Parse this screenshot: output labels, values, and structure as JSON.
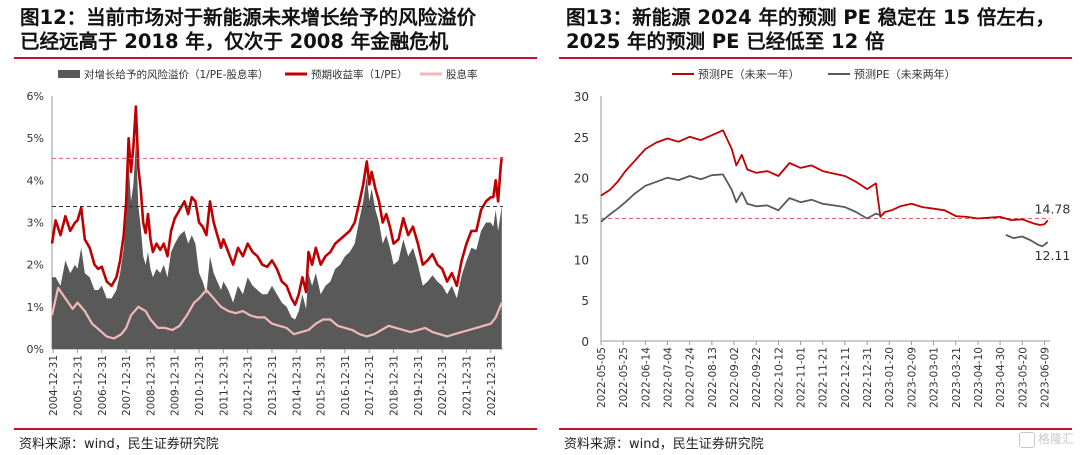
{
  "left_panel": {
    "title_line1": "图12：当前市场对于新能源未来增长给予的风险溢价",
    "title_line2": "已经远高于 2018 年，仅次于 2008 年金融危机",
    "source": "资料来源：wind，民生证券研究院"
  },
  "right_panel": {
    "title_line1": "图13：新能源 2024 年的预测 PE 稳定在 15 倍左右，",
    "title_line2": "2025 年的预测 PE 已经低至 12 倍",
    "source": "资料来源：wind，民生证券研究院"
  },
  "watermark": {
    "text": "格隆汇",
    "icon": "gelonghui-logo-icon"
  },
  "colors": {
    "rule": "#c8102e",
    "red_series": "#c00000",
    "gray_area": "#595959",
    "pink_series": "#f2b8b8",
    "dark_line": "#595959",
    "ref_red": "#e06060",
    "ref_black": "#333333"
  },
  "chart_data": [
    {
      "type": "area",
      "legend": [
        {
          "name": "对增长给予的风险溢价（1/PE-股息率）",
          "kind": "area",
          "color": "#595959"
        },
        {
          "name": "预期收益率（1/PE）",
          "kind": "line",
          "color": "#c00000"
        },
        {
          "name": "股息率",
          "kind": "line",
          "color": "#f2b8b8"
        }
      ],
      "y_ticks": [
        "0%",
        "1%",
        "2%",
        "3%",
        "4%",
        "5%",
        "6%"
      ],
      "ylim": [
        0,
        6
      ],
      "x_ticks": [
        "2004-12-31",
        "2005-12-31",
        "2006-12-31",
        "2007-12-31",
        "2008-12-31",
        "2009-12-31",
        "2010-12-31",
        "2011-12-31",
        "2012-12-31",
        "2013-12-31",
        "2014-12-31",
        "2015-12-31",
        "2016-12-31",
        "2017-12-31",
        "2018-12-31",
        "2019-12-31",
        "2020-12-31",
        "2021-12-31",
        "2022-12-31"
      ],
      "x_range": [
        2004.95,
        2023.5
      ],
      "reference_lines": [
        {
          "value": 4.52,
          "style": "dashed",
          "color": "#e06060"
        },
        {
          "value": 3.38,
          "style": "dashed",
          "color": "#333333"
        }
      ],
      "series": [
        {
          "name": "预期收益率（1/PE）",
          "t": [
            2004.95,
            2005.1,
            2005.3,
            2005.5,
            2005.7,
            2005.9,
            2006.0,
            2006.15,
            2006.3,
            2006.5,
            2006.7,
            2006.85,
            2007.0,
            2007.2,
            2007.4,
            2007.6,
            2007.75,
            2007.9,
            2008.0,
            2008.1,
            2008.2,
            2008.3,
            2008.4,
            2008.5,
            2008.6,
            2008.7,
            2008.8,
            2008.9,
            2009.0,
            2009.1,
            2009.25,
            2009.4,
            2009.55,
            2009.7,
            2009.85,
            2010.0,
            2010.2,
            2010.4,
            2010.55,
            2010.7,
            2010.85,
            2011.0,
            2011.15,
            2011.3,
            2011.45,
            2011.6,
            2011.75,
            2011.9,
            2012.0,
            2012.2,
            2012.4,
            2012.6,
            2012.8,
            2013.0,
            2013.2,
            2013.4,
            2013.6,
            2013.8,
            2014.0,
            2014.2,
            2014.4,
            2014.6,
            2014.8,
            2014.95,
            2015.1,
            2015.25,
            2015.4,
            2015.5,
            2015.65,
            2015.8,
            2016.0,
            2016.2,
            2016.4,
            2016.6,
            2016.8,
            2017.0,
            2017.2,
            2017.4,
            2017.6,
            2017.75,
            2017.9,
            2018.0,
            2018.1,
            2018.25,
            2018.4,
            2018.55,
            2018.7,
            2018.85,
            2019.0,
            2019.2,
            2019.4,
            2019.6,
            2019.8,
            2020.0,
            2020.2,
            2020.4,
            2020.6,
            2020.8,
            2021.0,
            2021.2,
            2021.4,
            2021.6,
            2021.8,
            2022.0,
            2022.2,
            2022.4,
            2022.6,
            2022.8,
            2023.0,
            2023.1,
            2023.2,
            2023.3,
            2023.4,
            2023.45
          ],
          "values": [
            2.5,
            3.05,
            2.7,
            3.15,
            2.8,
            3.0,
            3.05,
            3.35,
            2.6,
            2.4,
            2.0,
            1.9,
            1.95,
            1.6,
            1.5,
            1.7,
            2.1,
            2.7,
            3.5,
            5.0,
            4.2,
            4.8,
            5.75,
            4.3,
            3.8,
            3.0,
            2.75,
            3.2,
            2.6,
            2.3,
            2.5,
            2.35,
            2.5,
            2.2,
            2.8,
            3.1,
            3.3,
            3.5,
            3.2,
            3.6,
            3.5,
            3.0,
            2.9,
            2.7,
            3.5,
            3.0,
            2.7,
            2.4,
            2.6,
            2.3,
            2.0,
            2.4,
            2.2,
            2.5,
            2.3,
            2.2,
            2.0,
            1.95,
            2.1,
            1.9,
            1.6,
            1.5,
            1.2,
            1.05,
            1.3,
            1.7,
            1.35,
            2.3,
            2.0,
            2.4,
            2.0,
            2.2,
            2.3,
            2.5,
            2.6,
            2.7,
            2.8,
            3.0,
            3.5,
            3.9,
            4.45,
            3.9,
            4.2,
            3.8,
            3.5,
            3.0,
            3.2,
            2.9,
            2.5,
            2.6,
            3.1,
            2.7,
            2.9,
            2.5,
            2.0,
            2.1,
            2.25,
            2.0,
            1.9,
            1.6,
            1.8,
            1.5,
            2.1,
            2.5,
            2.8,
            2.8,
            3.3,
            3.5,
            3.6,
            3.6,
            4.0,
            3.5,
            4.3,
            4.55
          ]
        },
        {
          "name": "股息率",
          "t": [
            2004.95,
            2005.2,
            2005.5,
            2005.8,
            2006.0,
            2006.3,
            2006.6,
            2006.9,
            2007.2,
            2007.5,
            2007.8,
            2008.0,
            2008.2,
            2008.5,
            2008.8,
            2009.0,
            2009.3,
            2009.6,
            2009.9,
            2010.2,
            2010.5,
            2010.8,
            2011.0,
            2011.3,
            2011.6,
            2011.9,
            2012.2,
            2012.5,
            2012.8,
            2013.1,
            2013.4,
            2013.7,
            2014.0,
            2014.3,
            2014.6,
            2014.9,
            2015.2,
            2015.5,
            2015.8,
            2016.1,
            2016.4,
            2016.7,
            2017.0,
            2017.3,
            2017.6,
            2017.9,
            2018.2,
            2018.5,
            2018.8,
            2019.1,
            2019.4,
            2019.7,
            2020.0,
            2020.3,
            2020.6,
            2020.9,
            2021.2,
            2021.5,
            2021.8,
            2022.1,
            2022.4,
            2022.7,
            2023.0,
            2023.2,
            2023.45
          ],
          "values": [
            0.8,
            1.45,
            1.2,
            0.95,
            1.1,
            0.9,
            0.6,
            0.45,
            0.3,
            0.25,
            0.35,
            0.5,
            0.8,
            1.0,
            0.9,
            0.7,
            0.5,
            0.5,
            0.45,
            0.55,
            0.8,
            1.1,
            1.2,
            1.4,
            1.2,
            1.0,
            0.9,
            0.85,
            0.9,
            0.8,
            0.75,
            0.75,
            0.6,
            0.55,
            0.5,
            0.35,
            0.4,
            0.45,
            0.6,
            0.7,
            0.7,
            0.55,
            0.5,
            0.45,
            0.35,
            0.3,
            0.35,
            0.45,
            0.55,
            0.5,
            0.45,
            0.4,
            0.45,
            0.5,
            0.4,
            0.35,
            0.3,
            0.35,
            0.4,
            0.45,
            0.5,
            0.55,
            0.6,
            0.75,
            1.1
          ]
        },
        {
          "name": "对增长给予的风险溢价（1/PE-股息率）",
          "t": [
            2004.95,
            2005.1,
            2005.3,
            2005.5,
            2005.7,
            2005.9,
            2006.0,
            2006.15,
            2006.3,
            2006.5,
            2006.7,
            2006.85,
            2007.0,
            2007.2,
            2007.4,
            2007.6,
            2007.75,
            2007.9,
            2008.0,
            2008.1,
            2008.2,
            2008.3,
            2008.4,
            2008.5,
            2008.6,
            2008.7,
            2008.8,
            2008.9,
            2009.0,
            2009.1,
            2009.25,
            2009.4,
            2009.55,
            2009.7,
            2009.85,
            2010.0,
            2010.2,
            2010.4,
            2010.55,
            2010.7,
            2010.85,
            2011.0,
            2011.15,
            2011.3,
            2011.45,
            2011.6,
            2011.75,
            2011.9,
            2012.0,
            2012.2,
            2012.4,
            2012.6,
            2012.8,
            2013.0,
            2013.2,
            2013.4,
            2013.6,
            2013.8,
            2014.0,
            2014.2,
            2014.4,
            2014.6,
            2014.8,
            2014.95,
            2015.1,
            2015.25,
            2015.4,
            2015.5,
            2015.65,
            2015.8,
            2016.0,
            2016.2,
            2016.4,
            2016.6,
            2016.8,
            2017.0,
            2017.2,
            2017.4,
            2017.6,
            2017.75,
            2017.9,
            2018.0,
            2018.1,
            2018.25,
            2018.4,
            2018.55,
            2018.7,
            2018.85,
            2019.0,
            2019.2,
            2019.4,
            2019.6,
            2019.8,
            2020.0,
            2020.2,
            2020.4,
            2020.6,
            2020.8,
            2021.0,
            2021.2,
            2021.4,
            2021.6,
            2021.8,
            2022.0,
            2022.2,
            2022.4,
            2022.6,
            2022.8,
            2023.0,
            2023.1,
            2023.2,
            2023.3,
            2023.4,
            2023.45
          ],
          "values": [
            1.7,
            1.7,
            1.5,
            2.1,
            1.8,
            2.0,
            1.9,
            2.4,
            1.8,
            1.7,
            1.4,
            1.4,
            1.5,
            1.2,
            1.2,
            1.4,
            1.8,
            2.4,
            3.1,
            4.4,
            3.5,
            3.9,
            4.9,
            3.4,
            2.9,
            2.2,
            2.0,
            2.3,
            1.9,
            1.7,
            1.9,
            1.8,
            2.0,
            1.7,
            2.3,
            2.5,
            2.7,
            2.8,
            2.5,
            2.7,
            2.5,
            1.8,
            1.6,
            1.3,
            2.2,
            1.8,
            1.6,
            1.4,
            1.6,
            1.4,
            1.1,
            1.5,
            1.3,
            1.7,
            1.5,
            1.4,
            1.3,
            1.3,
            1.5,
            1.3,
            1.1,
            1.0,
            0.75,
            0.7,
            0.9,
            1.3,
            0.95,
            1.8,
            1.5,
            1.8,
            1.3,
            1.5,
            1.6,
            1.9,
            2.0,
            2.2,
            2.3,
            2.5,
            3.1,
            3.5,
            4.1,
            3.5,
            3.8,
            3.3,
            3.0,
            2.5,
            2.7,
            2.4,
            2.0,
            2.1,
            2.6,
            2.2,
            2.4,
            2.0,
            1.5,
            1.6,
            1.75,
            1.6,
            1.5,
            1.3,
            1.5,
            1.2,
            1.75,
            2.1,
            2.4,
            2.35,
            2.8,
            3.0,
            3.0,
            2.9,
            3.3,
            2.8,
            3.2,
            3.4
          ]
        }
      ]
    },
    {
      "type": "line",
      "legend": [
        {
          "name": "预测PE（未来一年）",
          "color": "#c00000"
        },
        {
          "name": "预测PE（未来两年）",
          "color": "#595959"
        }
      ],
      "y_ticks": [
        "0",
        "5",
        "10",
        "15",
        "20",
        "25",
        "30"
      ],
      "ylim": [
        0,
        30
      ],
      "x_ticks": [
        "2022-05-05",
        "2022-05-25",
        "2022-06-14",
        "2022-07-04",
        "2022-07-24",
        "2022-08-13",
        "2022-09-02",
        "2022-09-22",
        "2022-10-12",
        "2022-11-01",
        "2022-11-21",
        "2022-12-11",
        "2022-12-31",
        "2023-01-20",
        "2023-02-09",
        "2023-03-01",
        "2023-03-21",
        "2023-04-10",
        "2023-04-30",
        "2023-05-20",
        "2023-06-09"
      ],
      "x_range_days": [
        0,
        405
      ],
      "reference_lines": [
        {
          "value": 15,
          "style": "dashed",
          "color": "#e06060"
        }
      ],
      "annotations": [
        {
          "text": "14.78",
          "value": 14.78
        },
        {
          "text": "12.11",
          "value": 12.11
        }
      ],
      "series": [
        {
          "name": "预测PE（未来一年）",
          "x_day": [
            0,
            8,
            15,
            22,
            30,
            40,
            50,
            60,
            70,
            80,
            90,
            100,
            110,
            118,
            122,
            127,
            132,
            140,
            150,
            160,
            170,
            180,
            190,
            200,
            210,
            220,
            230,
            240,
            248,
            252,
            256,
            262,
            270,
            280,
            290,
            300,
            310,
            320,
            330,
            340,
            350,
            360,
            370,
            380,
            390,
            396,
            400,
            403
          ],
          "values": [
            17.8,
            18.5,
            19.5,
            20.8,
            22.0,
            23.5,
            24.3,
            24.8,
            24.4,
            25.0,
            24.6,
            25.2,
            25.8,
            23.5,
            21.5,
            22.8,
            21.0,
            20.6,
            20.8,
            20.2,
            21.8,
            21.2,
            21.5,
            20.8,
            20.5,
            20.2,
            19.5,
            18.6,
            19.3,
            15.2,
            15.8,
            16.0,
            16.5,
            16.8,
            16.4,
            16.2,
            16.0,
            15.3,
            15.2,
            15.0,
            15.1,
            15.2,
            14.8,
            14.9,
            14.4,
            14.2,
            14.3,
            14.78
          ]
        },
        {
          "name": "预测PE（未来两年）",
          "x_day": [
            0,
            8,
            15,
            22,
            30,
            40,
            50,
            60,
            70,
            80,
            90,
            100,
            110,
            118,
            122,
            127,
            132,
            140,
            150,
            160,
            170,
            180,
            190,
            200,
            210,
            220,
            230,
            240,
            248,
            252,
            365,
            372,
            380,
            388,
            394,
            398,
            403
          ],
          "values": [
            14.6,
            15.5,
            16.2,
            17.0,
            18.0,
            19.0,
            19.5,
            20.0,
            19.7,
            20.2,
            19.8,
            20.3,
            20.4,
            18.5,
            17.0,
            18.2,
            16.8,
            16.5,
            16.6,
            16.0,
            17.5,
            17.0,
            17.3,
            16.8,
            16.6,
            16.4,
            15.8,
            15.0,
            15.6,
            15.4,
            13.0,
            12.6,
            12.8,
            12.3,
            11.8,
            11.6,
            12.11
          ]
        }
      ]
    }
  ]
}
